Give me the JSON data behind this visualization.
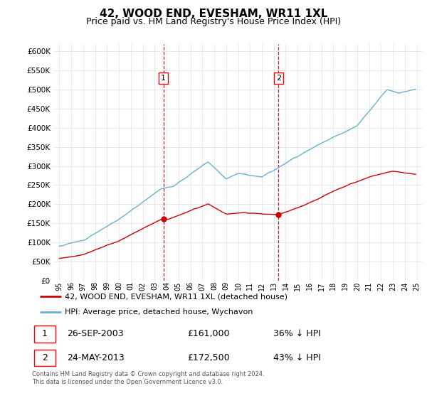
{
  "title": "42, WOOD END, EVESHAM, WR11 1XL",
  "subtitle": "Price paid vs. HM Land Registry's House Price Index (HPI)",
  "legend_line1": "42, WOOD END, EVESHAM, WR11 1XL (detached house)",
  "legend_line2": "HPI: Average price, detached house, Wychavon",
  "footnote1": "Contains HM Land Registry data © Crown copyright and database right 2024.",
  "footnote2": "This data is licensed under the Open Government Licence v3.0.",
  "table_rows": [
    {
      "num": "1",
      "date": "26-SEP-2003",
      "price": "£161,000",
      "rel": "36% ↓ HPI"
    },
    {
      "num": "2",
      "date": "24-MAY-2013",
      "price": "£172,500",
      "rel": "43% ↓ HPI"
    }
  ],
  "marker1_year": 2003.73,
  "marker2_year": 2013.39,
  "marker1_price": 161000,
  "marker2_price": 172500,
  "vline1_year": 2003.73,
  "vline2_year": 2013.39,
  "hpi_color": "#6baed6",
  "price_color": "#cc0000",
  "vline_color": "#cc0000",
  "ylim_min": 0,
  "ylim_max": 620000,
  "xlim_min": 1994.5,
  "xlim_max": 2025.5,
  "yticks": [
    0,
    50000,
    100000,
    150000,
    200000,
    250000,
    300000,
    350000,
    400000,
    450000,
    500000,
    550000,
    600000
  ],
  "xtick_years": [
    1995,
    1996,
    1997,
    1998,
    1999,
    2000,
    2001,
    2002,
    2003,
    2004,
    2005,
    2006,
    2007,
    2008,
    2009,
    2010,
    2011,
    2012,
    2013,
    2014,
    2015,
    2016,
    2017,
    2018,
    2019,
    2020,
    2021,
    2022,
    2023,
    2024,
    2025
  ],
  "background_color": "#ffffff",
  "grid_color": "#e0e0e0",
  "title_fontsize": 11,
  "subtitle_fontsize": 9
}
